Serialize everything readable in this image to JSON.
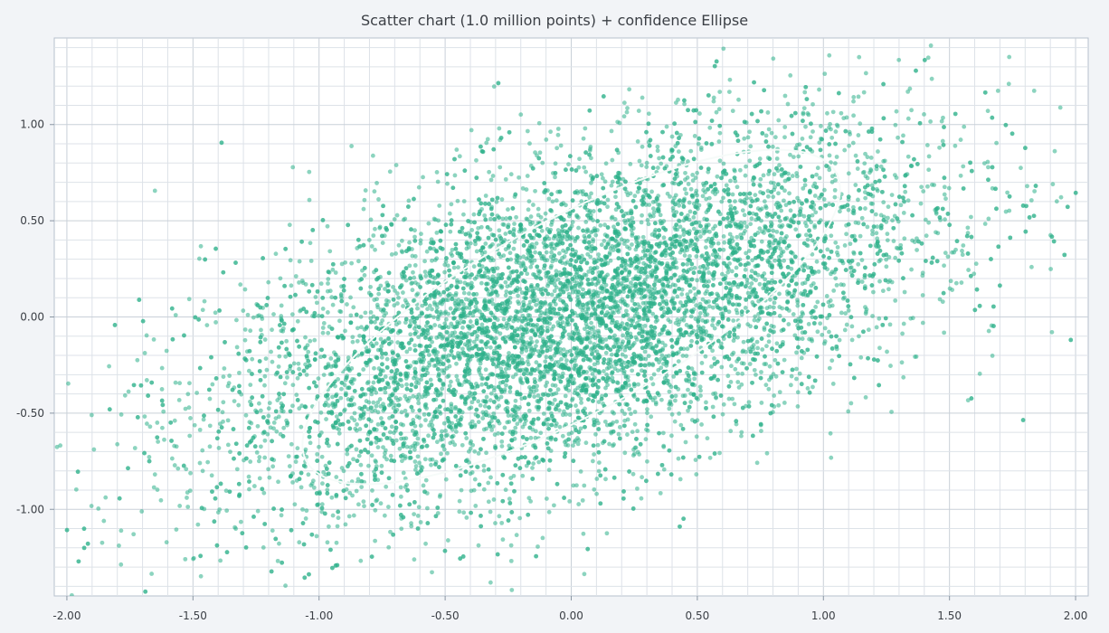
{
  "chart_data": {
    "type": "scatter",
    "title": "Scatter chart (1.0 million points) + confidence Ellipse",
    "xlabel": "",
    "ylabel": "",
    "xlim": [
      -2.05,
      2.05
    ],
    "ylim": [
      -1.45,
      1.45
    ],
    "x_ticks": [
      -2.0,
      -1.5,
      -1.0,
      -0.5,
      0.0,
      0.5,
      1.0,
      1.5,
      2.0
    ],
    "x_tick_labels": [
      "-2.00",
      "-1.50",
      "-1.00",
      "-0.50",
      "0.00",
      "0.50",
      "1.00",
      "1.50",
      "2.00"
    ],
    "y_ticks": [
      1.0,
      0.5,
      0.0,
      -0.5,
      -1.0
    ],
    "y_tick_labels": [
      "1.00",
      "0.50",
      "0.00",
      "-0.50",
      "-1.00"
    ],
    "grid": true,
    "point_count": 1000000,
    "series": [
      {
        "kind": "points",
        "color": "#2db08a",
        "distribution": {
          "mean": [
            0.0,
            0.0
          ],
          "std": [
            0.7,
            0.48
          ],
          "correlation": 0.55
        }
      },
      {
        "kind": "ellipse",
        "color": "#f6fbf9",
        "center": [
          0.0,
          0.0
        ],
        "axis_endpoints": [
          [
            1.05,
            0.75
          ],
          [
            -1.05,
            -0.75
          ]
        ],
        "semi_minor": 0.5,
        "angle_deg": 26
      }
    ]
  }
}
